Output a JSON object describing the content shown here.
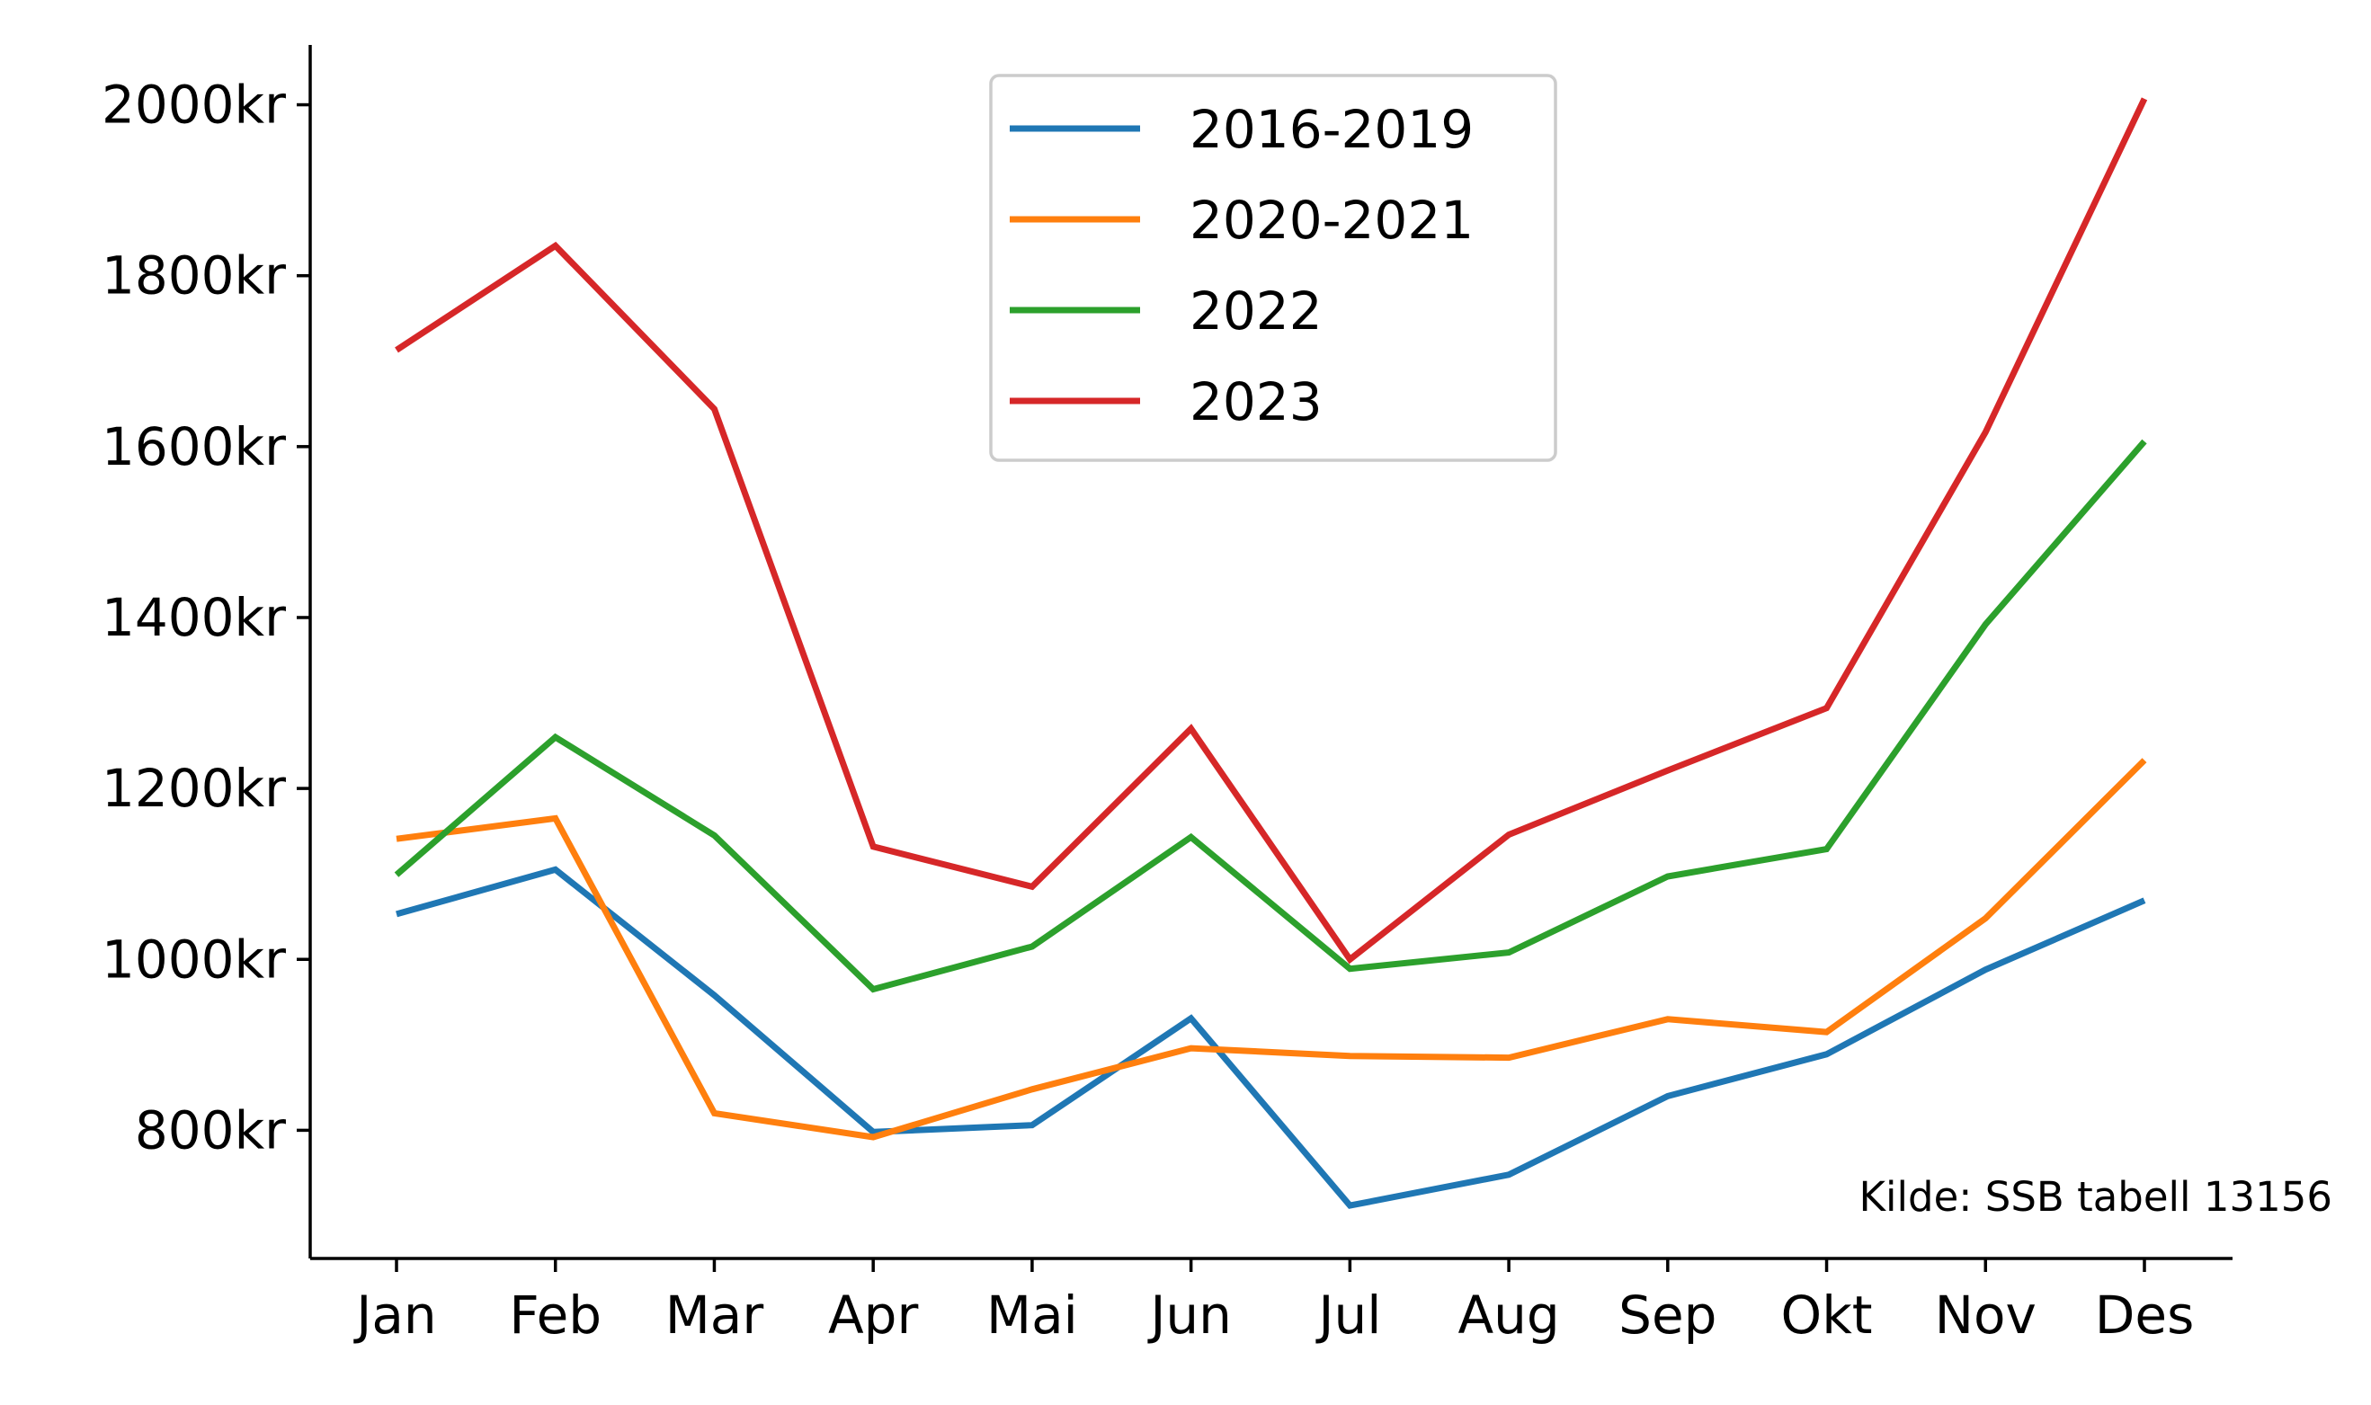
{
  "chart_data": {
    "type": "line",
    "categories": [
      "Jan",
      "Feb",
      "Mar",
      "Apr",
      "Mai",
      "Jun",
      "Jul",
      "Aug",
      "Sep",
      "Okt",
      "Nov",
      "Des"
    ],
    "y_tick_values": [
      800,
      1000,
      1200,
      1400,
      1600,
      1800,
      2000
    ],
    "y_tick_labels": [
      "800kr",
      "1000kr",
      "1200kr",
      "1400kr",
      "1600kr",
      "1800kr",
      "2000kr"
    ],
    "ylim": [
      650,
      2070
    ],
    "grid": false,
    "legend_position": "top-center",
    "annotation": "Kilde: SSB tabell 13156",
    "series": [
      {
        "name": "2016-2019",
        "color": "#1f77b4",
        "values": [
          1053,
          1105,
          958,
          798,
          806,
          931,
          712,
          748,
          840,
          889,
          988,
          1069
        ]
      },
      {
        "name": "2020-2021",
        "color": "#ff7f0e",
        "values": [
          1141,
          1165,
          820,
          792,
          848,
          896,
          887,
          885,
          930,
          915,
          1048,
          1233
        ]
      },
      {
        "name": "2022",
        "color": "#2ca02c",
        "values": [
          1099,
          1260,
          1145,
          965,
          1015,
          1143,
          989,
          1008,
          1097,
          1129,
          1392,
          1606
        ]
      },
      {
        "name": "2023",
        "color": "#d62728",
        "values": [
          1713,
          1835,
          1644,
          1132,
          1085,
          1270,
          1000,
          1146,
          1221,
          1294,
          1617,
          2007
        ]
      }
    ]
  }
}
